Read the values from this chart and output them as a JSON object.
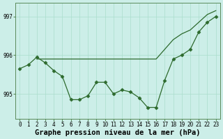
{
  "line1": {
    "x": [
      0,
      1,
      2,
      3,
      4,
      5,
      6,
      7,
      8,
      9,
      10,
      11,
      12,
      13,
      14,
      15,
      16,
      17,
      18,
      19,
      20,
      21,
      22,
      23
    ],
    "y": [
      995.65,
      995.75,
      995.95,
      995.8,
      995.6,
      995.45,
      994.85,
      994.85,
      994.95,
      995.3,
      995.3,
      995.0,
      995.1,
      995.05,
      994.9,
      994.65,
      994.65,
      995.35,
      995.9,
      996.0,
      996.15,
      996.6,
      996.85,
      997.0
    ],
    "color": "#2d6a2d",
    "marker": "D",
    "markersize": 2.5,
    "linewidth": 0.9
  },
  "line2": {
    "x": [
      2,
      3,
      4,
      5,
      6,
      7,
      8,
      9,
      10,
      11,
      12,
      13,
      14,
      15,
      16,
      17,
      18,
      19,
      20,
      21,
      22,
      23
    ],
    "y": [
      995.9,
      995.9,
      995.9,
      995.9,
      995.9,
      995.9,
      995.9,
      995.9,
      995.9,
      995.9,
      995.9,
      995.9,
      995.9,
      995.9,
      995.9,
      996.15,
      996.4,
      996.55,
      996.65,
      996.85,
      997.05,
      997.15
    ],
    "color": "#2d6a2d",
    "marker": null,
    "markersize": 0,
    "linewidth": 0.9
  },
  "bg_color": "#cceee8",
  "grid_color_major": "#aaddcc",
  "grid_color_minor": "#bbeecc",
  "line_color": "#2d6a2d",
  "title": "Graphe pression niveau de la mer (hPa)",
  "ylabel_ticks": [
    995,
    996,
    997
  ],
  "ytick_labels": [
    "995",
    "996",
    "997"
  ],
  "xlim_min": -0.5,
  "xlim_max": 23.5,
  "ylim_min": 994.35,
  "ylim_max": 997.35,
  "xlabel_ticks": [
    0,
    1,
    2,
    3,
    4,
    5,
    6,
    7,
    8,
    9,
    10,
    11,
    12,
    13,
    14,
    15,
    16,
    17,
    18,
    19,
    20,
    21,
    22,
    23
  ],
  "xlabel_labels": [
    "0",
    "1",
    "2",
    "3",
    "4",
    "5",
    "6",
    "7",
    "8",
    "9",
    "10",
    "11",
    "12",
    "13",
    "14",
    "15",
    "16",
    "17",
    "18",
    "19",
    "20",
    "21",
    "22",
    "23"
  ],
  "tick_fontsize": 5.5,
  "title_fontsize": 7.5,
  "title_fontweight": "bold"
}
